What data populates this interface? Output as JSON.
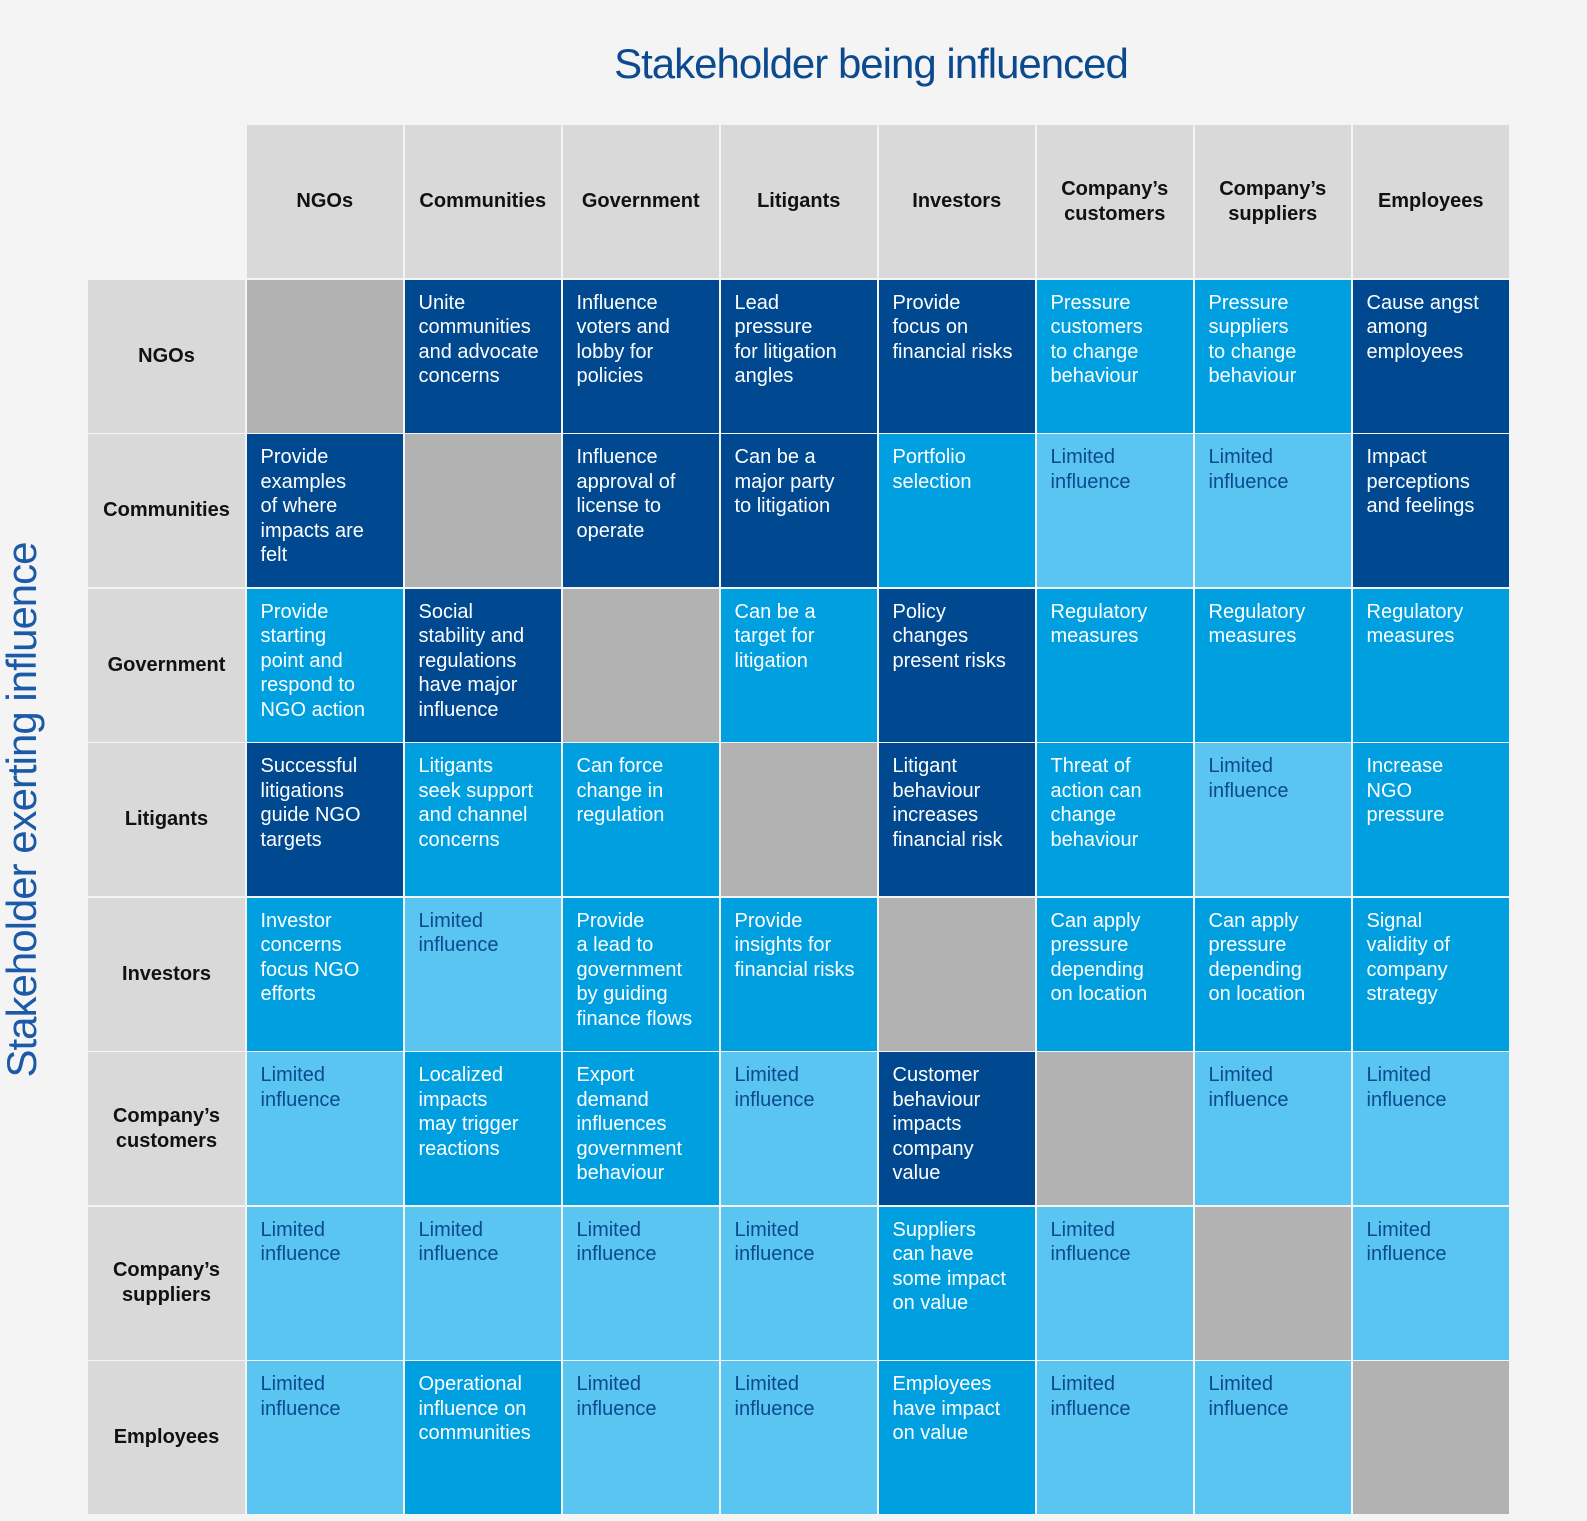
{
  "title": "Stakeholder being influenced",
  "side_label": "Stakeholder exerting influence",
  "colors": {
    "strong": "#004990",
    "medium": "#009fe0",
    "limited": "#5bc5f2",
    "not_applicable": "#b2b2b2",
    "header": "#d9d9d9"
  },
  "columns": [
    "NGOs",
    "Communities",
    "Government",
    "Litigants",
    "Investors",
    "Company’s\ncustomers",
    "Company’s\nsuppliers",
    "Employees"
  ],
  "rows": [
    {
      "label": "NGOs",
      "cells": [
        {
          "text": "",
          "level": "g"
        },
        {
          "text": "Unite\ncommunities\nand advocate\nconcerns",
          "level": "d"
        },
        {
          "text": "Influence\nvoters and\nlobby for\npolicies",
          "level": "d"
        },
        {
          "text": "Lead\npressure\nfor litigation\nangles",
          "level": "d"
        },
        {
          "text": "Provide\nfocus on\nfinancial risks",
          "level": "d"
        },
        {
          "text": "Pressure\ncustomers\nto change\nbehaviour",
          "level": "m"
        },
        {
          "text": "Pressure\nsuppliers\nto change\nbehaviour",
          "level": "m"
        },
        {
          "text": "Cause angst\namong\nemployees",
          "level": "d"
        }
      ]
    },
    {
      "label": "Communities",
      "cells": [
        {
          "text": "Provide\nexamples\nof where\nimpacts are\nfelt",
          "level": "d"
        },
        {
          "text": "",
          "level": "g"
        },
        {
          "text": "Influence\napproval of\nlicense to\noperate",
          "level": "d"
        },
        {
          "text": "Can be a\nmajor party\nto litigation",
          "level": "d"
        },
        {
          "text": "Portfolio\nselection",
          "level": "m"
        },
        {
          "text": "Limited\ninfluence",
          "level": "l"
        },
        {
          "text": "Limited\ninfluence",
          "level": "l"
        },
        {
          "text": "Impact\nperceptions\nand feelings",
          "level": "d"
        }
      ]
    },
    {
      "label": "Government",
      "cells": [
        {
          "text": "Provide\nstarting\npoint and\nrespond to\nNGO action",
          "level": "m"
        },
        {
          "text": "Social\nstability and\nregulations\nhave major\ninfluence",
          "level": "d"
        },
        {
          "text": "",
          "level": "g"
        },
        {
          "text": "Can be a\ntarget for\nlitigation",
          "level": "m"
        },
        {
          "text": "Policy\nchanges\npresent risks",
          "level": "d"
        },
        {
          "text": "Regulatory\nmeasures",
          "level": "m"
        },
        {
          "text": "Regulatory\nmeasures",
          "level": "m"
        },
        {
          "text": "Regulatory\nmeasures",
          "level": "m"
        }
      ]
    },
    {
      "label": "Litigants",
      "cells": [
        {
          "text": "Successful\nlitigations\nguide NGO\ntargets",
          "level": "d"
        },
        {
          "text": "Litigants\nseek support\nand channel\nconcerns",
          "level": "m"
        },
        {
          "text": "Can force\nchange in\nregulation",
          "level": "m"
        },
        {
          "text": "",
          "level": "g"
        },
        {
          "text": "Litigant\nbehaviour\nincreases\nfinancial risk",
          "level": "d"
        },
        {
          "text": "Threat of\naction can\nchange\nbehaviour",
          "level": "m"
        },
        {
          "text": "Limited\ninfluence",
          "level": "l"
        },
        {
          "text": "Increase\nNGO\npressure",
          "level": "m"
        }
      ]
    },
    {
      "label": "Investors",
      "cells": [
        {
          "text": "Investor\nconcerns\nfocus NGO\nefforts",
          "level": "m"
        },
        {
          "text": "Limited\ninfluence",
          "level": "l"
        },
        {
          "text": "Provide\na lead to\ngovernment\nby guiding\nfinance flows",
          "level": "m"
        },
        {
          "text": "Provide\ninsights for\nfinancial risks",
          "level": "m"
        },
        {
          "text": "",
          "level": "g"
        },
        {
          "text": "Can apply\npressure\ndepending\non location",
          "level": "m"
        },
        {
          "text": "Can apply\npressure\ndepending\non location",
          "level": "m"
        },
        {
          "text": "Signal\nvalidity of\ncompany\nstrategy",
          "level": "m"
        }
      ]
    },
    {
      "label": "Company’s\ncustomers",
      "cells": [
        {
          "text": "Limited\ninfluence",
          "level": "l"
        },
        {
          "text": "Localized\nimpacts\nmay trigger\nreactions",
          "level": "m"
        },
        {
          "text": "Export\ndemand\ninfluences\ngovernment\nbehaviour",
          "level": "m"
        },
        {
          "text": "Limited\ninfluence",
          "level": "l"
        },
        {
          "text": "Customer\nbehaviour\nimpacts\ncompany\nvalue",
          "level": "d"
        },
        {
          "text": "",
          "level": "g"
        },
        {
          "text": "Limited\ninfluence",
          "level": "l"
        },
        {
          "text": "Limited\ninfluence",
          "level": "l"
        }
      ]
    },
    {
      "label": "Company’s\nsuppliers",
      "cells": [
        {
          "text": "Limited\ninfluence",
          "level": "l"
        },
        {
          "text": "Limited\ninfluence",
          "level": "l"
        },
        {
          "text": "Limited\ninfluence",
          "level": "l"
        },
        {
          "text": "Limited\ninfluence",
          "level": "l"
        },
        {
          "text": "Suppliers\ncan have\nsome impact\non value",
          "level": "m"
        },
        {
          "text": "Limited\ninfluence",
          "level": "l"
        },
        {
          "text": "",
          "level": "g"
        },
        {
          "text": "Limited\ninfluence",
          "level": "l"
        }
      ]
    },
    {
      "label": "Employees",
      "cells": [
        {
          "text": "Limited\ninfluence",
          "level": "l"
        },
        {
          "text": "Operational\ninfluence on\ncommunities",
          "level": "m"
        },
        {
          "text": "Limited\ninfluence",
          "level": "l"
        },
        {
          "text": "Limited\ninfluence",
          "level": "l"
        },
        {
          "text": "Employees\nhave impact\non value",
          "level": "m"
        },
        {
          "text": "Limited\ninfluence",
          "level": "l"
        },
        {
          "text": "Limited\ninfluence",
          "level": "l"
        },
        {
          "text": "",
          "level": "g"
        }
      ]
    }
  ]
}
